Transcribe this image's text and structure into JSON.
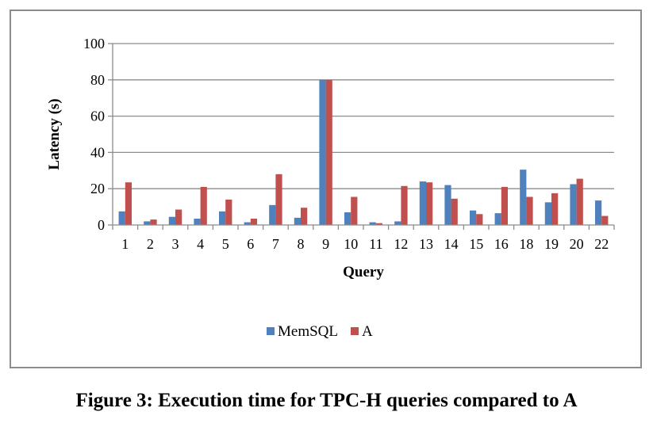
{
  "caption": "Figure 3: Execution time for TPC-H queries compared to A",
  "chart_data": {
    "type": "bar",
    "title": "",
    "xlabel": "Query",
    "ylabel": "Latency (s)",
    "ylim": [
      0,
      100
    ],
    "yticks": [
      0,
      20,
      40,
      60,
      80,
      100
    ],
    "grid": true,
    "legend_position": "bottom",
    "categories": [
      "1",
      "2",
      "3",
      "4",
      "5",
      "6",
      "7",
      "8",
      "9",
      "10",
      "11",
      "12",
      "13",
      "14",
      "15",
      "16",
      "18",
      "19",
      "20",
      "22"
    ],
    "series": [
      {
        "name": "MemSQL",
        "color": "#4F81BD",
        "values": [
          7.5,
          2,
          4.5,
          3.5,
          7.5,
          1.5,
          11,
          4,
          80,
          7,
          1.5,
          2,
          24,
          22,
          8,
          6.5,
          30.5,
          12.5,
          22.5,
          13.5
        ]
      },
      {
        "name": "A",
        "color": "#C0504D",
        "values": [
          23.5,
          3,
          8.5,
          21,
          14,
          3.5,
          28,
          9.5,
          80,
          15.5,
          1,
          21.5,
          23.5,
          14.5,
          6,
          21,
          15.5,
          17.5,
          25.5,
          5
        ]
      }
    ]
  }
}
